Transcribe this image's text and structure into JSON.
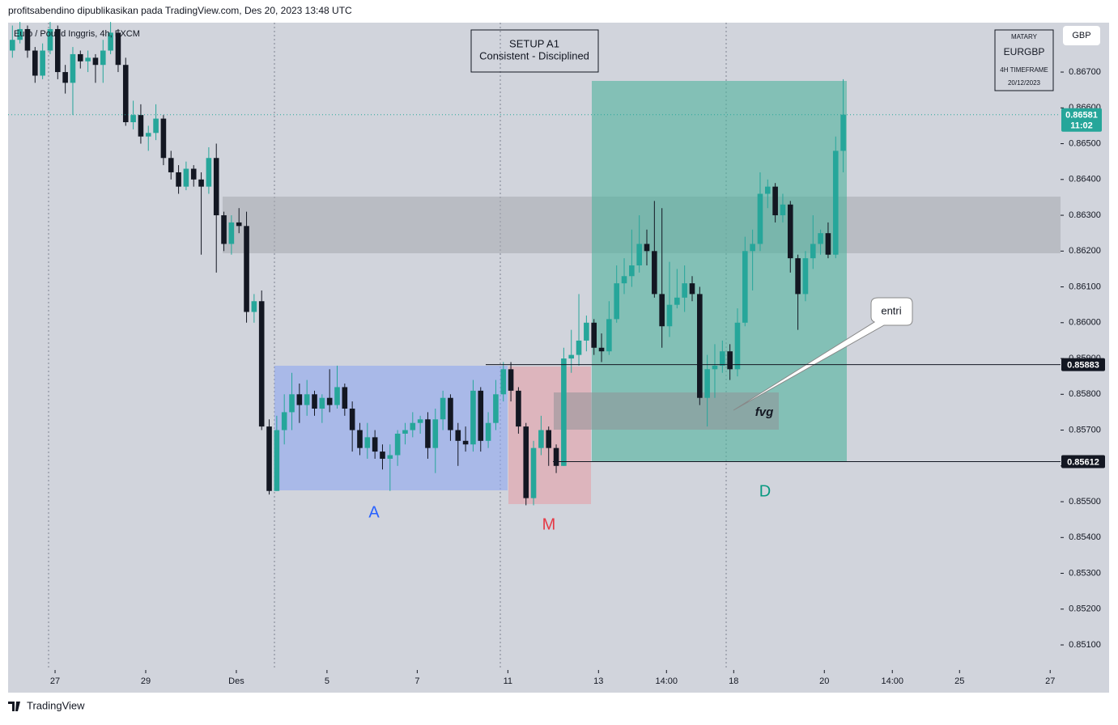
{
  "header": {
    "publisher": "profitsabendino dipublikasikan pada TradingView.com, Des 20, 2023 13:48 UTC",
    "footer": "TradingView"
  },
  "chart_data": {
    "type": "candlestick",
    "symbol": "Euro / Pound Inggris, 4h, FXCM",
    "currency": "GBP",
    "setup_title": "SETUP A1",
    "setup_subtitle": "Consistent - Disciplined",
    "info_box": [
      "MATARY",
      "EURGBP",
      "4H TIMEFRAME",
      "20/12/2023"
    ],
    "annotations": {
      "a": "A",
      "m": "M",
      "d": "D",
      "fvg": "fvg",
      "entry": "entri"
    },
    "up_color": "#26a69a",
    "down_color": "#131722",
    "last_price": {
      "value": 0.86581,
      "label": "0.86581",
      "countdown": "11:02"
    },
    "levels": [
      {
        "value": 0.85883,
        "label": "0.85883"
      },
      {
        "value": 0.85612,
        "label": "0.85612"
      }
    ],
    "ylim": [
      0.8503,
      0.86838
    ],
    "yticks": [
      {
        "value": 0.867,
        "label": "0.86700"
      },
      {
        "value": 0.866,
        "label": "0.86600"
      },
      {
        "value": 0.865,
        "label": "0.86500"
      },
      {
        "value": 0.864,
        "label": "0.86400"
      },
      {
        "value": 0.863,
        "label": "0.86300"
      },
      {
        "value": 0.862,
        "label": "0.86200"
      },
      {
        "value": 0.861,
        "label": "0.86100"
      },
      {
        "value": 0.86,
        "label": "0.86000"
      },
      {
        "value": 0.859,
        "label": "0.85900"
      },
      {
        "value": 0.858,
        "label": "0.85800"
      },
      {
        "value": 0.857,
        "label": "0.85700"
      },
      {
        "value": 0.856,
        "label": "0.85600"
      },
      {
        "value": 0.855,
        "label": "0.85500"
      },
      {
        "value": 0.854,
        "label": "0.85400"
      },
      {
        "value": 0.853,
        "label": "0.85300"
      },
      {
        "value": 0.852,
        "label": "0.85200"
      },
      {
        "value": 0.851,
        "label": "0.85100"
      }
    ],
    "xlim": [
      -0.57,
      138.77
    ],
    "xticks": [
      {
        "value": 5.65,
        "label": "27"
      },
      {
        "value": 17.65,
        "label": "29"
      },
      {
        "value": 29.65,
        "label": "Des"
      },
      {
        "value": 41.65,
        "label": "5"
      },
      {
        "value": 53.6,
        "label": "7"
      },
      {
        "value": 65.6,
        "label": "11"
      },
      {
        "value": 77.6,
        "label": "13"
      },
      {
        "value": 86.6,
        "label": "14:00"
      },
      {
        "value": 95.5,
        "label": "18"
      },
      {
        "value": 107.5,
        "label": "20"
      },
      {
        "value": 116.5,
        "label": "14:00"
      },
      {
        "value": 125.4,
        "label": "25"
      },
      {
        "value": 137.4,
        "label": "27"
      }
    ],
    "candles": [
      [
        0.8676,
        0.8683,
        0.8674,
        0.8679
      ],
      [
        0.8679,
        0.8684,
        0.8678,
        0.8682
      ],
      [
        0.8682,
        0.8683,
        0.8674,
        0.8676
      ],
      [
        0.8676,
        0.8677,
        0.8667,
        0.8669
      ],
      [
        0.8669,
        0.8678,
        0.8668,
        0.8676
      ],
      [
        0.8676,
        0.8684,
        0.8675,
        0.8682
      ],
      [
        0.8682,
        0.8683,
        0.8668,
        0.867
      ],
      [
        0.867,
        0.8672,
        0.8664,
        0.8667
      ],
      [
        0.8667,
        0.8677,
        0.8658,
        0.8675
      ],
      [
        0.8675,
        0.8676,
        0.8671,
        0.8673
      ],
      [
        0.8673,
        0.8676,
        0.867,
        0.8674
      ],
      [
        0.8674,
        0.8675,
        0.8667,
        0.8672
      ],
      [
        0.8672,
        0.8679,
        0.8667,
        0.8676
      ],
      [
        0.8676,
        0.8684,
        0.8675,
        0.8681
      ],
      [
        0.8681,
        0.8682,
        0.867,
        0.8672
      ],
      [
        0.8672,
        0.8674,
        0.8655,
        0.8656
      ],
      [
        0.8656,
        0.8662,
        0.8654,
        0.8658
      ],
      [
        0.8658,
        0.8661,
        0.865,
        0.8652
      ],
      [
        0.8652,
        0.8655,
        0.8648,
        0.8653
      ],
      [
        0.8653,
        0.8661,
        0.8651,
        0.8657
      ],
      [
        0.8657,
        0.8658,
        0.8644,
        0.8646
      ],
      [
        0.8646,
        0.8648,
        0.864,
        0.8642
      ],
      [
        0.8642,
        0.8644,
        0.8636,
        0.8638
      ],
      [
        0.8638,
        0.8645,
        0.8637,
        0.8643
      ],
      [
        0.8643,
        0.8644,
        0.8638,
        0.864
      ],
      [
        0.864,
        0.8642,
        0.8619,
        0.8638
      ],
      [
        0.8638,
        0.8649,
        0.8636,
        0.8646
      ],
      [
        0.8646,
        0.865,
        0.8614,
        0.863
      ],
      [
        0.863,
        0.8631,
        0.862,
        0.8622
      ],
      [
        0.8622,
        0.863,
        0.8619,
        0.8628
      ],
      [
        0.8628,
        0.8632,
        0.8625,
        0.8627
      ],
      [
        0.8627,
        0.8631,
        0.86,
        0.8603
      ],
      [
        0.8603,
        0.8608,
        0.86,
        0.8606
      ],
      [
        0.8606,
        0.8609,
        0.857,
        0.8571
      ],
      [
        0.8571,
        0.8573,
        0.8552,
        0.8553
      ],
      [
        0.8553,
        0.8574,
        0.8553,
        0.857
      ],
      [
        0.857,
        0.858,
        0.8566,
        0.8575
      ],
      [
        0.8575,
        0.8586,
        0.857,
        0.858
      ],
      [
        0.858,
        0.8583,
        0.8572,
        0.8577
      ],
      [
        0.8577,
        0.8584,
        0.8574,
        0.858
      ],
      [
        0.858,
        0.8581,
        0.8574,
        0.8576
      ],
      [
        0.8576,
        0.858,
        0.8572,
        0.8579
      ],
      [
        0.8579,
        0.8587,
        0.8575,
        0.8577
      ],
      [
        0.8577,
        0.8588,
        0.8576,
        0.8582
      ],
      [
        0.8582,
        0.8583,
        0.8574,
        0.8576
      ],
      [
        0.8576,
        0.8578,
        0.8564,
        0.857
      ],
      [
        0.857,
        0.8572,
        0.8563,
        0.8565
      ],
      [
        0.8565,
        0.8572,
        0.8562,
        0.8568
      ],
      [
        0.8568,
        0.857,
        0.8562,
        0.8564
      ],
      [
        0.8564,
        0.8566,
        0.8559,
        0.8562
      ],
      [
        0.8562,
        0.8566,
        0.8553,
        0.8563
      ],
      [
        0.8563,
        0.857,
        0.856,
        0.8569
      ],
      [
        0.8569,
        0.8572,
        0.8566,
        0.857
      ],
      [
        0.857,
        0.8575,
        0.8568,
        0.8572
      ],
      [
        0.8572,
        0.8574,
        0.8569,
        0.8573
      ],
      [
        0.8573,
        0.8575,
        0.8562,
        0.8565
      ],
      [
        0.8565,
        0.8576,
        0.8558,
        0.8573
      ],
      [
        0.8573,
        0.8581,
        0.857,
        0.8579
      ],
      [
        0.8579,
        0.858,
        0.8567,
        0.857
      ],
      [
        0.857,
        0.8572,
        0.856,
        0.8567
      ],
      [
        0.8567,
        0.8571,
        0.8564,
        0.8566
      ],
      [
        0.8566,
        0.8584,
        0.8564,
        0.8581
      ],
      [
        0.8581,
        0.8582,
        0.8564,
        0.8567
      ],
      [
        0.8567,
        0.8575,
        0.8565,
        0.8572
      ],
      [
        0.8572,
        0.8584,
        0.857,
        0.858
      ],
      [
        0.858,
        0.8589,
        0.8578,
        0.8587
      ],
      [
        0.8587,
        0.8589,
        0.8578,
        0.8581
      ],
      [
        0.8581,
        0.8582,
        0.8569,
        0.8571
      ],
      [
        0.8571,
        0.8572,
        0.8549,
        0.8551
      ],
      [
        0.8551,
        0.8567,
        0.8549,
        0.8565
      ],
      [
        0.8565,
        0.8574,
        0.8563,
        0.857
      ],
      [
        0.857,
        0.8571,
        0.856,
        0.8565
      ],
      [
        0.8565,
        0.8566,
        0.8558,
        0.856
      ],
      [
        0.856,
        0.8593,
        0.856,
        0.859
      ],
      [
        0.859,
        0.8598,
        0.8586,
        0.8591
      ],
      [
        0.8591,
        0.8608,
        0.8588,
        0.8595
      ],
      [
        0.8595,
        0.8602,
        0.8592,
        0.86
      ],
      [
        0.86,
        0.8601,
        0.8591,
        0.8593
      ],
      [
        0.8593,
        0.8597,
        0.8589,
        0.8592
      ],
      [
        0.8592,
        0.8606,
        0.8591,
        0.8601
      ],
      [
        0.8601,
        0.8616,
        0.86,
        0.8611
      ],
      [
        0.8611,
        0.8618,
        0.8608,
        0.8613
      ],
      [
        0.8613,
        0.8626,
        0.861,
        0.8616
      ],
      [
        0.8616,
        0.863,
        0.8614,
        0.8622
      ],
      [
        0.8622,
        0.8626,
        0.8616,
        0.862
      ],
      [
        0.862,
        0.8634,
        0.8607,
        0.8608
      ],
      [
        0.8608,
        0.8632,
        0.8593,
        0.8599
      ],
      [
        0.8599,
        0.8617,
        0.8596,
        0.8605
      ],
      [
        0.8605,
        0.8615,
        0.8604,
        0.8607
      ],
      [
        0.8607,
        0.8616,
        0.8603,
        0.8611
      ],
      [
        0.8611,
        0.8613,
        0.8606,
        0.8608
      ],
      [
        0.8608,
        0.861,
        0.8577,
        0.8579
      ],
      [
        0.8579,
        0.8591,
        0.8571,
        0.8587
      ],
      [
        0.8587,
        0.8594,
        0.8579,
        0.8588
      ],
      [
        0.8588,
        0.8595,
        0.8586,
        0.8592
      ],
      [
        0.8592,
        0.8594,
        0.8584,
        0.8587
      ],
      [
        0.8587,
        0.8604,
        0.8585,
        0.86
      ],
      [
        0.86,
        0.8624,
        0.8599,
        0.862
      ],
      [
        0.862,
        0.8626,
        0.8609,
        0.8622
      ],
      [
        0.8622,
        0.8642,
        0.862,
        0.8636
      ],
      [
        0.8636,
        0.864,
        0.8632,
        0.8638
      ],
      [
        0.8638,
        0.8639,
        0.8628,
        0.863
      ],
      [
        0.863,
        0.8636,
        0.8628,
        0.8633
      ],
      [
        0.8633,
        0.8634,
        0.8614,
        0.8618
      ],
      [
        0.8618,
        0.8619,
        0.8598,
        0.8608
      ],
      [
        0.8608,
        0.862,
        0.8606,
        0.8618
      ],
      [
        0.8618,
        0.863,
        0.8615,
        0.8622
      ],
      [
        0.8622,
        0.8626,
        0.8619,
        0.8625
      ],
      [
        0.8625,
        0.8628,
        0.8618,
        0.8619
      ],
      [
        0.8619,
        0.8652,
        0.8618,
        0.8648
      ],
      [
        0.8648,
        0.8668,
        0.8642,
        0.86581
      ]
    ]
  }
}
